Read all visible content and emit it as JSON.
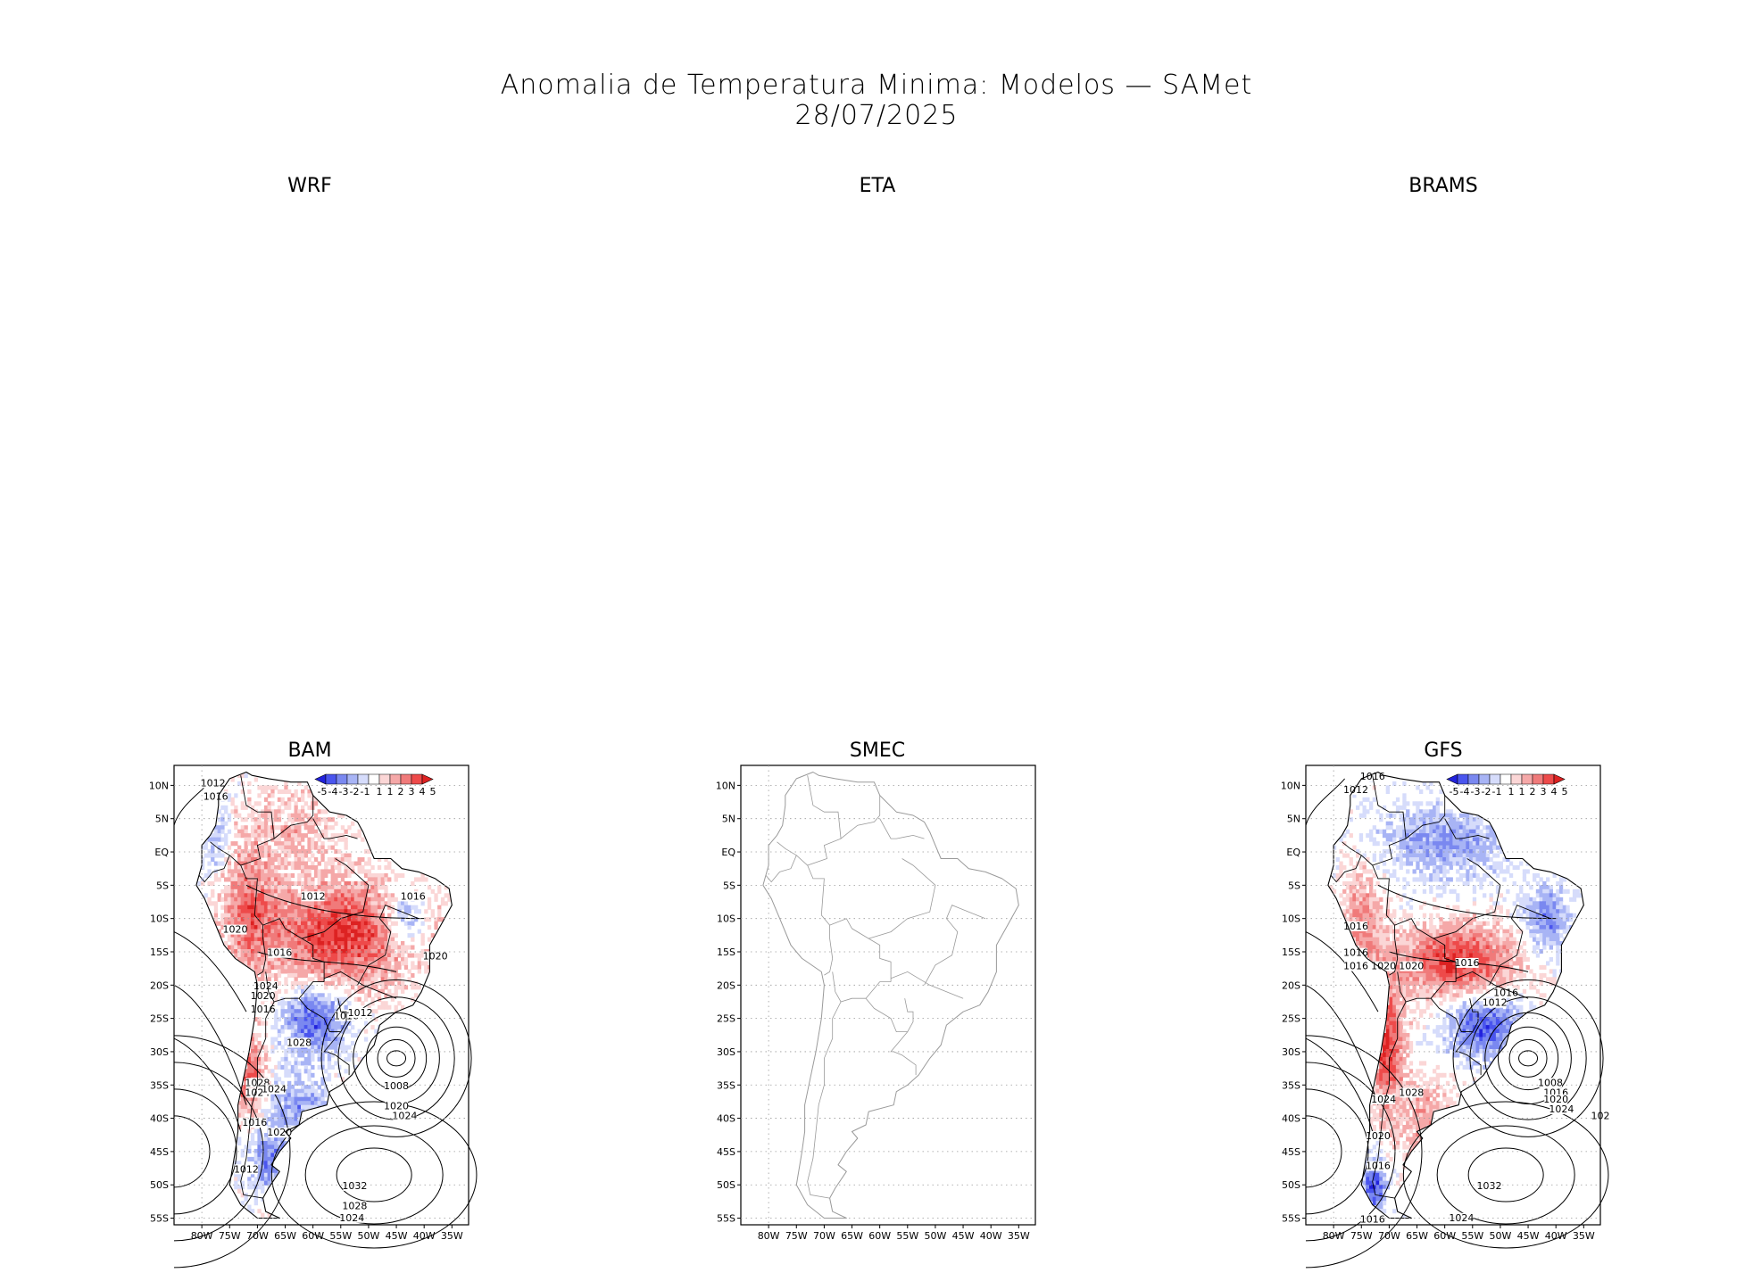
{
  "title": {
    "line1": "Anomalia de Temperatura Minima: Modelos — SAMet",
    "line2": "28/07/2025"
  },
  "panels": [
    {
      "name": "WRF",
      "has_map": false
    },
    {
      "name": "ETA",
      "has_map": false
    },
    {
      "name": "BRAMS",
      "has_map": false
    },
    {
      "name": "BAM",
      "has_map": true,
      "has_data": true,
      "isobar_labels": [
        "1012",
        "1016",
        "1012",
        "1016",
        "1020",
        "1016",
        "1024",
        "1020",
        "1016",
        "1016",
        "1012",
        "1028",
        "1028",
        "1024",
        "1024",
        "1016",
        "1020",
        "1012",
        "1020",
        "1008",
        "1020",
        "1024",
        "1032",
        "1028",
        "1024"
      ]
    },
    {
      "name": "SMEC",
      "has_map": true,
      "has_data": false
    },
    {
      "name": "GFS",
      "has_map": true,
      "has_data": true,
      "isobar_labels": [
        "1016",
        "1012",
        "1016",
        "1016",
        "1016",
        "1020",
        "1020",
        "1016",
        "1016",
        "1012",
        "1024",
        "1028",
        "1008",
        "1016",
        "1020",
        "1024",
        "102",
        "1020",
        "1016",
        "1032",
        "1016",
        "1024"
      ]
    }
  ],
  "axes": {
    "lat_labels": [
      "10N",
      "5N",
      "EQ",
      "5S",
      "10S",
      "15S",
      "20S",
      "25S",
      "30S",
      "35S",
      "40S",
      "45S",
      "50S",
      "55S"
    ],
    "lon_labels": [
      "80W",
      "75W",
      "70W",
      "65W",
      "60W",
      "55W",
      "50W",
      "45W",
      "40W",
      "35W"
    ]
  },
  "colorbar": {
    "labels": [
      "-5",
      "-4",
      "-3",
      "-2",
      "-1",
      "1",
      "1",
      "2",
      "3",
      "4",
      "5"
    ],
    "colors": [
      "#2222dd",
      "#4a55ee",
      "#7a88f0",
      "#a8b4f5",
      "#d6dcfb",
      "#ffffff",
      "#fbd6d6",
      "#f5a8a8",
      "#f07a7a",
      "#ee4a4a",
      "#dd2222"
    ]
  },
  "colors": {
    "warm": "#e8262a",
    "cold": "#3b4fd8",
    "coast": "#000000",
    "coast_empty": "#9a9a9a",
    "grid": "#9a9a9a"
  }
}
